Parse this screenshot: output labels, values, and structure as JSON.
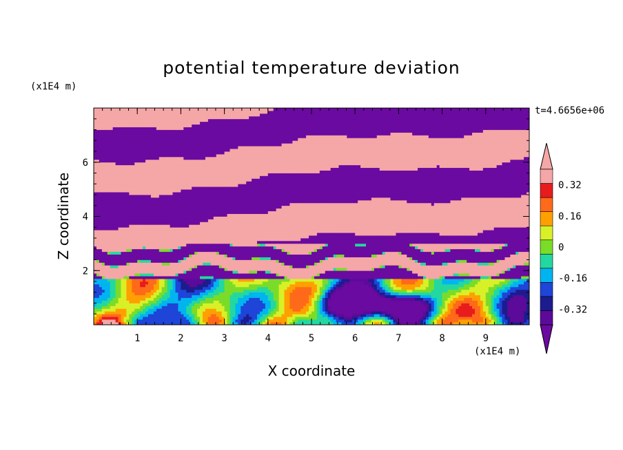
{
  "chart_data": {
    "type": "heatmap",
    "title": "potential temperature deviation",
    "xlabel": "X coordinate",
    "ylabel": "Z coordinate",
    "x_unit": "(x1E4 m)",
    "z_unit": "(x1E4 m)",
    "time_label": "t=4.6656e+06",
    "xlim": [
      0,
      10
    ],
    "ylim": [
      0,
      8
    ],
    "x_ticks": [
      1,
      2,
      3,
      4,
      5,
      6,
      7,
      8,
      9
    ],
    "x_tick_labels": [
      "1",
      "2",
      "3",
      "4",
      "5",
      "6",
      "7",
      "8",
      "9"
    ],
    "y_ticks": [
      2,
      4,
      6
    ],
    "y_tick_labels": [
      "2",
      "4",
      "6"
    ],
    "colorbar": {
      "levels": [
        -0.4,
        -0.32,
        -0.24,
        -0.16,
        -0.08,
        0,
        0.08,
        0.16,
        0.24,
        0.32,
        0.4
      ],
      "colors": [
        "#5c0a99",
        "#1c1c8e",
        "#1e44d8",
        "#00b4f0",
        "#23d8a0",
        "#7adc28",
        "#d8f028",
        "#ffa000",
        "#ff6a1a",
        "#e81c1c",
        "#f5a6a6"
      ],
      "under_color": "#6a0aa0",
      "over_color": "#f5a6a6",
      "tick_values": [
        0.32,
        0.16,
        0,
        -0.16,
        -0.32
      ],
      "tick_labels": [
        "0.32",
        "0.16",
        "0",
        "-0.16",
        "-0.32"
      ]
    },
    "field_description_values": {
      "upper_layer_bands_levels": [
        0.4,
        -0.4
      ],
      "lower_layer_value_range": [
        -0.4,
        0.32
      ]
    }
  }
}
